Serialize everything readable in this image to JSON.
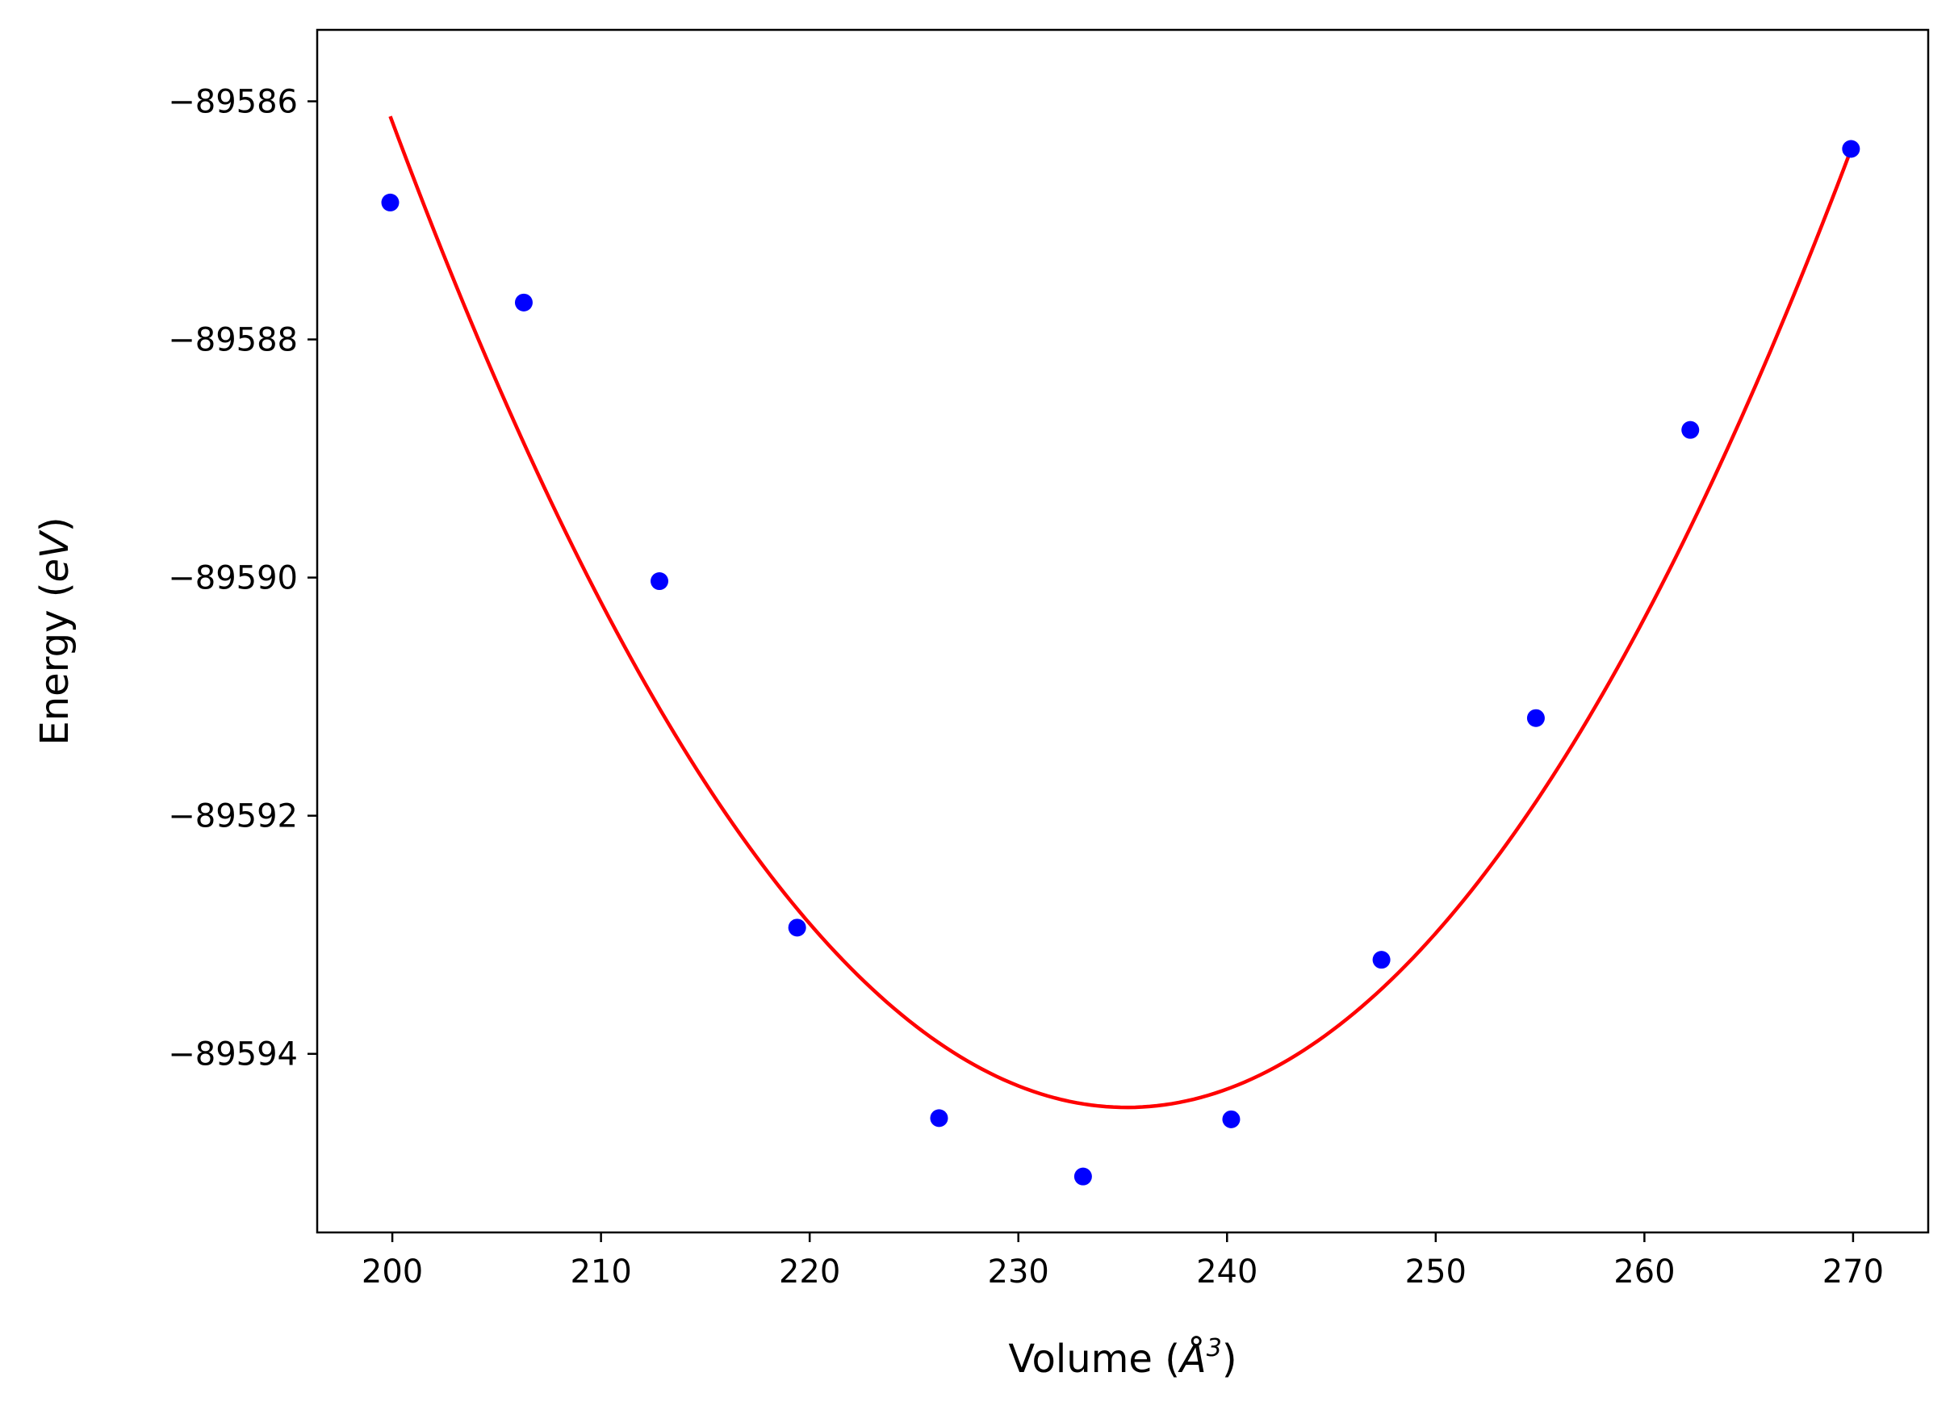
{
  "chart_data": {
    "type": "scatter",
    "title": "",
    "xlabel": {
      "text": "Volume (",
      "unit_symbol": "Å",
      "unit_power": "3",
      "close": ")"
    },
    "ylabel": {
      "text": "Energy (",
      "unit": "eV",
      "close": ")"
    },
    "xlim": [
      196.4,
      273.6
    ],
    "ylim": [
      -89595.5,
      -89585.4
    ],
    "x_ticks": [
      200,
      210,
      220,
      230,
      240,
      250,
      260,
      270
    ],
    "x_tick_labels": [
      "200",
      "210",
      "220",
      "230",
      "240",
      "250",
      "260",
      "270"
    ],
    "y_ticks": [
      -89586,
      -89588,
      -89590,
      -89592,
      -89594
    ],
    "y_tick_labels": [
      "−89586",
      "−89588",
      "−89590",
      "−89592",
      "−89594"
    ],
    "grid": false,
    "legend": "none",
    "series": [
      {
        "kind": "scatter",
        "color": "#0000ff",
        "x": [
          199.9,
          206.3,
          212.8,
          219.4,
          226.2,
          233.1,
          240.2,
          247.4,
          254.8,
          262.2,
          269.9
        ],
        "y": [
          -89586.85,
          -89587.69,
          -89590.03,
          -89592.94,
          -89594.54,
          -89595.03,
          -89594.55,
          -89593.21,
          -89591.18,
          -89588.76,
          -89586.4
        ]
      },
      {
        "kind": "line",
        "color": "#ff0000",
        "fit": "quadratic",
        "x_range": [
          199.9,
          269.9
        ],
        "vertex_x": 235.2,
        "vertex_y": -89594.45,
        "curvature": 0.00668
      }
    ]
  }
}
